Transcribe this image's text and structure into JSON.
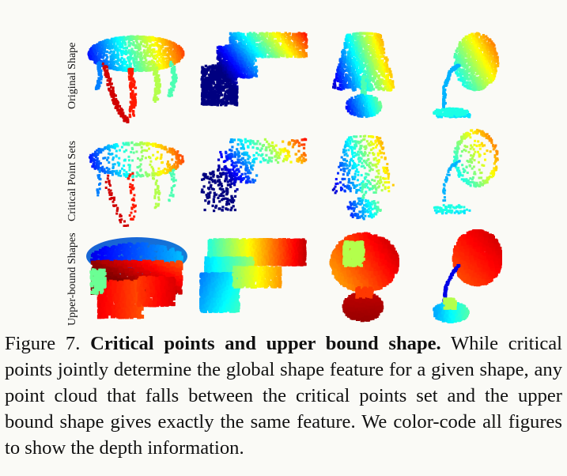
{
  "figure": {
    "rows": [
      {
        "label": "Original Shape",
        "style": "points"
      },
      {
        "label": "Critical Point Sets",
        "style": "sparse"
      },
      {
        "label": "Upper-bound Shapes",
        "style": "solid"
      }
    ],
    "columns": [
      "table",
      "gun",
      "lamp",
      "desk-lamp"
    ]
  },
  "caption": {
    "label": "Figure 7.",
    "title": "Critical points and upper bound shape.",
    "body": "While critical points jointly determine the global shape feature for a given shape, any point cloud that falls between the critical points set and the upper bound shape gives exactly the same feature. We color-code all figures to show the depth information."
  }
}
